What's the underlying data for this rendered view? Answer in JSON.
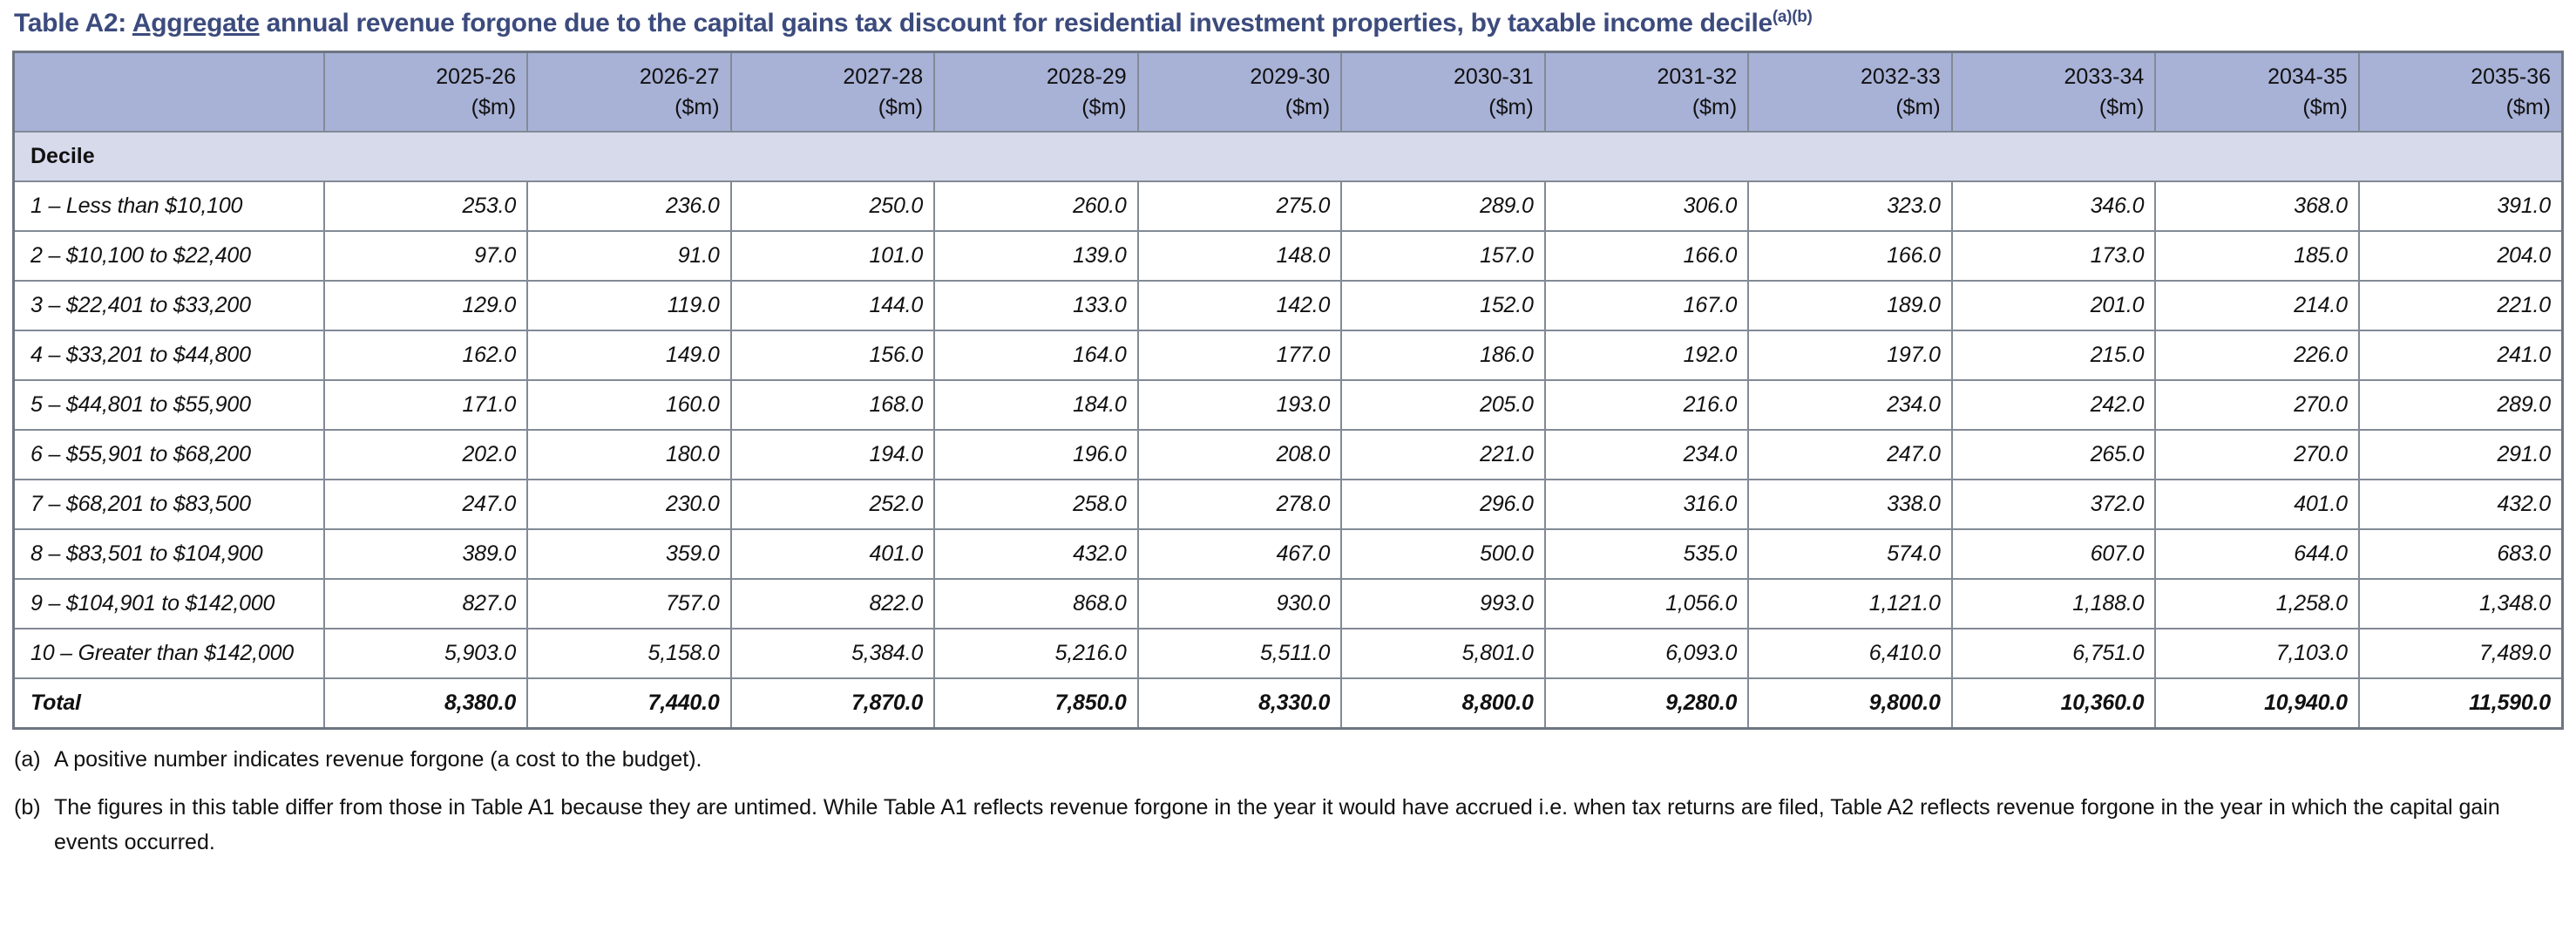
{
  "title": {
    "prefix": "Table A2: ",
    "underlined": "Aggregate",
    "rest": " annual revenue forgone due to the capital gains tax discount for residential investment properties, by taxable income decile",
    "superscript": "(a)(b)"
  },
  "table": {
    "unit_label": "($m)",
    "section_label": "Decile",
    "columns": [
      "2025-26",
      "2026-27",
      "2027-28",
      "2028-29",
      "2029-30",
      "2030-31",
      "2031-32",
      "2032-33",
      "2033-34",
      "2034-35",
      "2035-36"
    ],
    "rows": [
      {
        "label": "1 – Less than $10,100",
        "total": false,
        "values": [
          "253.0",
          "236.0",
          "250.0",
          "260.0",
          "275.0",
          "289.0",
          "306.0",
          "323.0",
          "346.0",
          "368.0",
          "391.0"
        ]
      },
      {
        "label": "2 – $10,100 to $22,400",
        "total": false,
        "values": [
          "97.0",
          "91.0",
          "101.0",
          "139.0",
          "148.0",
          "157.0",
          "166.0",
          "166.0",
          "173.0",
          "185.0",
          "204.0"
        ]
      },
      {
        "label": "3 – $22,401 to $33,200",
        "total": false,
        "values": [
          "129.0",
          "119.0",
          "144.0",
          "133.0",
          "142.0",
          "152.0",
          "167.0",
          "189.0",
          "201.0",
          "214.0",
          "221.0"
        ]
      },
      {
        "label": "4 – $33,201 to $44,800",
        "total": false,
        "values": [
          "162.0",
          "149.0",
          "156.0",
          "164.0",
          "177.0",
          "186.0",
          "192.0",
          "197.0",
          "215.0",
          "226.0",
          "241.0"
        ]
      },
      {
        "label": "5 – $44,801 to $55,900",
        "total": false,
        "values": [
          "171.0",
          "160.0",
          "168.0",
          "184.0",
          "193.0",
          "205.0",
          "216.0",
          "234.0",
          "242.0",
          "270.0",
          "289.0"
        ]
      },
      {
        "label": "6 – $55,901 to $68,200",
        "total": false,
        "values": [
          "202.0",
          "180.0",
          "194.0",
          "196.0",
          "208.0",
          "221.0",
          "234.0",
          "247.0",
          "265.0",
          "270.0",
          "291.0"
        ]
      },
      {
        "label": "7 – $68,201 to $83,500",
        "total": false,
        "values": [
          "247.0",
          "230.0",
          "252.0",
          "258.0",
          "278.0",
          "296.0",
          "316.0",
          "338.0",
          "372.0",
          "401.0",
          "432.0"
        ]
      },
      {
        "label": "8 – $83,501 to $104,900",
        "total": false,
        "values": [
          "389.0",
          "359.0",
          "401.0",
          "432.0",
          "467.0",
          "500.0",
          "535.0",
          "574.0",
          "607.0",
          "644.0",
          "683.0"
        ]
      },
      {
        "label": "9 – $104,901 to $142,000",
        "total": false,
        "values": [
          "827.0",
          "757.0",
          "822.0",
          "868.0",
          "930.0",
          "993.0",
          "1,056.0",
          "1,121.0",
          "1,188.0",
          "1,258.0",
          "1,348.0"
        ]
      },
      {
        "label": "10 – Greater than $142,000",
        "total": false,
        "values": [
          "5,903.0",
          "5,158.0",
          "5,384.0",
          "5,216.0",
          "5,511.0",
          "5,801.0",
          "6,093.0",
          "6,410.0",
          "6,751.0",
          "7,103.0",
          "7,489.0"
        ]
      },
      {
        "label": "Total",
        "total": true,
        "values": [
          "8,380.0",
          "7,440.0",
          "7,870.0",
          "7,850.0",
          "8,330.0",
          "8,800.0",
          "9,280.0",
          "9,800.0",
          "10,360.0",
          "10,940.0",
          "11,590.0"
        ]
      }
    ]
  },
  "footnotes": [
    {
      "label": "(a)",
      "text": "A positive number indicates revenue forgone (a cost to the budget)."
    },
    {
      "label": "(b)",
      "text": "The figures in this table differ from those in Table A1 because they are untimed. While Table A1 reflects revenue forgone in the year it would have accrued i.e. when tax returns are filed, Table A2 reflects revenue forgone in the year in which the capital gain events occurred."
    }
  ],
  "colors": {
    "title_text": "#3C4B7D",
    "header_background": "#A8B1D6",
    "section_row_background": "#D6DAEB",
    "cell_border": "#828A96",
    "body_text": "#111111"
  }
}
